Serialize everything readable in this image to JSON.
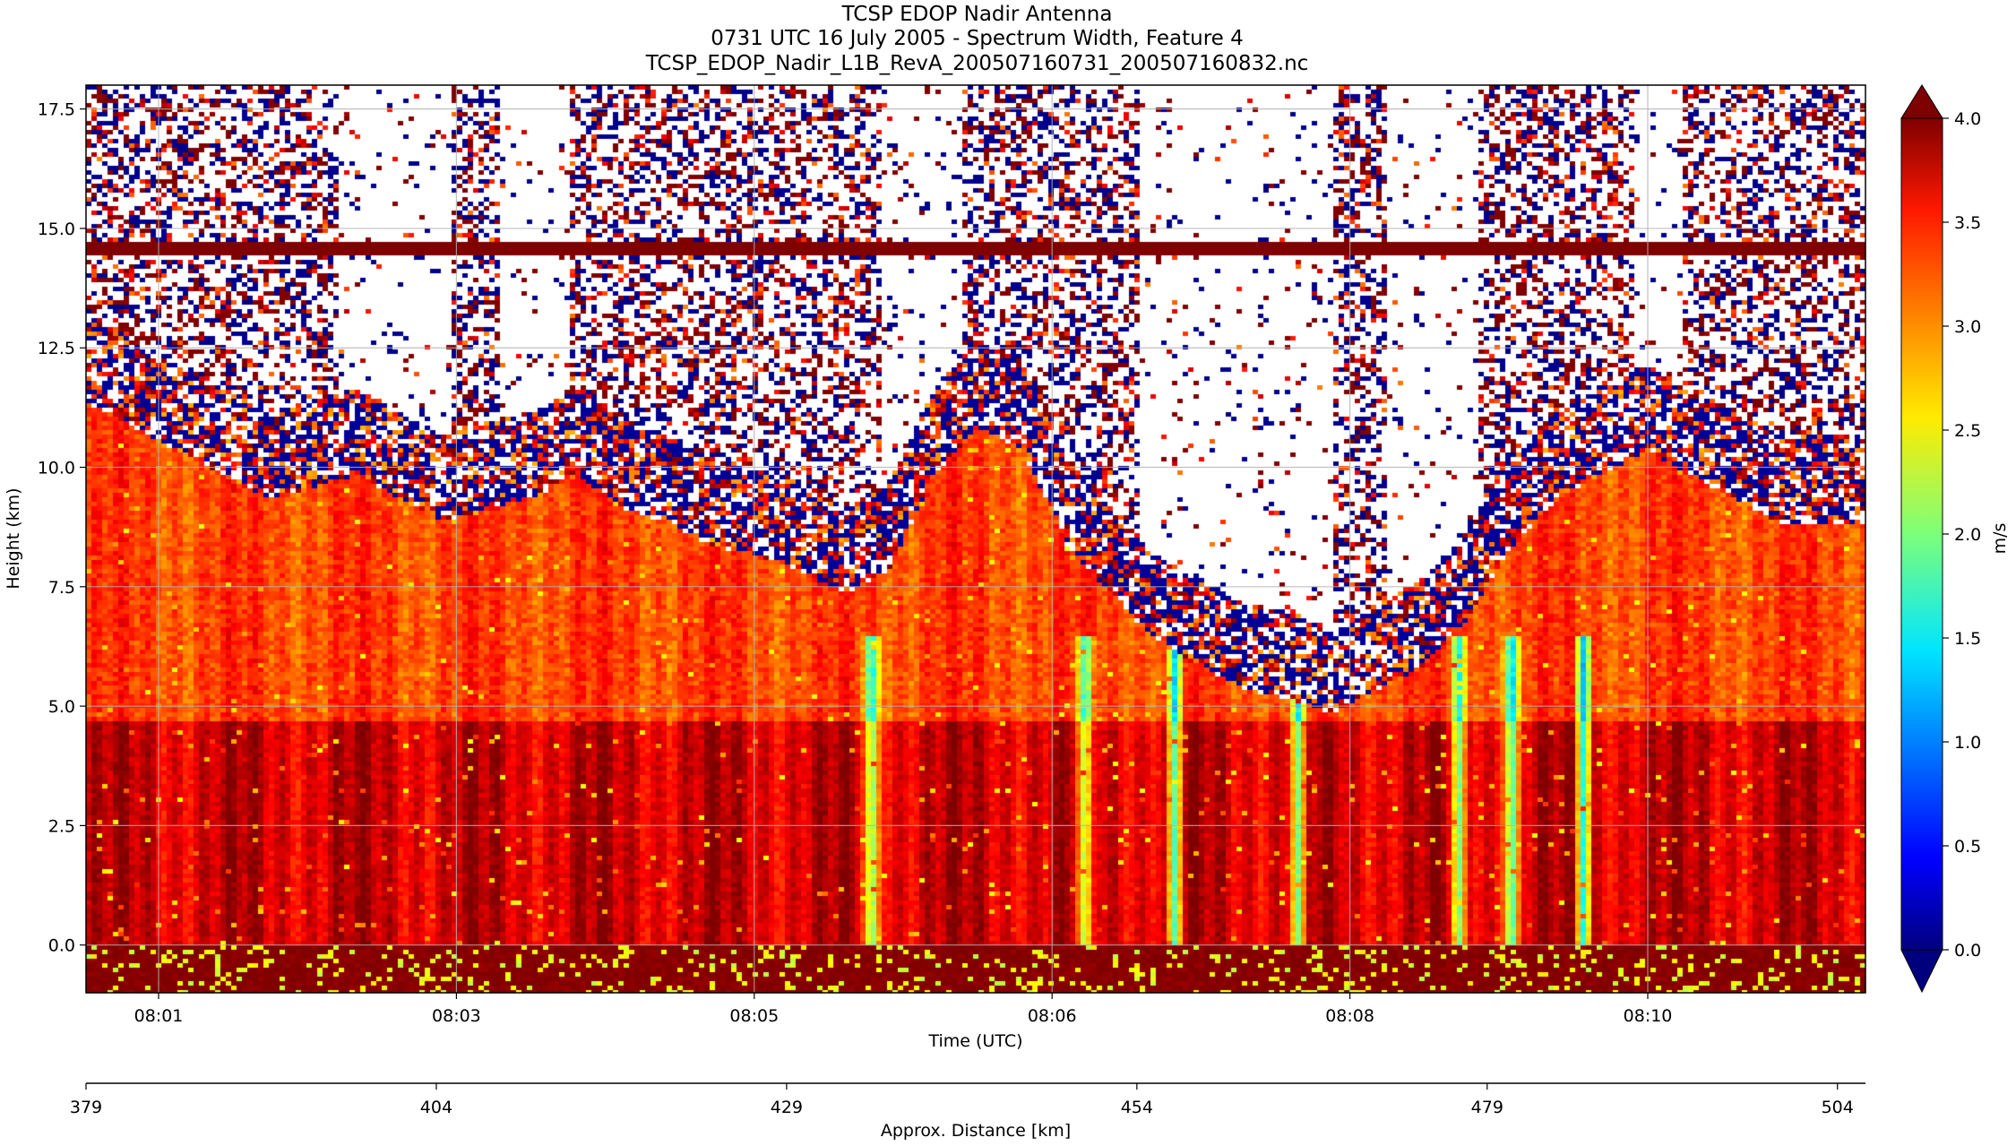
{
  "chart_data": {
    "type": "heatmap",
    "title_lines": [
      "TCSP EDOP Nadir Antenna",
      "0731 UTC 16 July 2005 - Spectrum Width, Feature 4",
      "TCSP_EDOP_Nadir_L1B_RevA_200507160731_200507160832.nc"
    ],
    "xlabel": "Time (UTC)",
    "ylabel": "Height (km)",
    "x_tick_labels": [
      "08:01",
      "08:03",
      "08:05",
      "08:06",
      "08:08",
      "08:10"
    ],
    "y_ticks": [
      0.0,
      2.5,
      5.0,
      7.5,
      10.0,
      12.5,
      15.0,
      17.5
    ],
    "y_tick_labels": [
      "0.0",
      "2.5",
      "5.0",
      "7.5",
      "10.0",
      "12.5",
      "15.0",
      "17.5"
    ],
    "ylim": [
      -1.0,
      18.0
    ],
    "grid": true,
    "secondary_axis": {
      "label": "Approx. Distance [km]",
      "xlim": [
        379,
        506
      ],
      "ticks": [
        379,
        404,
        429,
        454,
        479,
        504
      ],
      "tick_labels": [
        "379",
        "404",
        "429",
        "454",
        "479",
        "504"
      ]
    },
    "colorbar": {
      "label": "m/s",
      "colormap": "jet",
      "range": [
        0.0,
        4.0
      ],
      "ticks": [
        0.0,
        0.5,
        1.0,
        1.5,
        2.0,
        2.5,
        3.0,
        3.5,
        4.0
      ],
      "tick_labels": [
        "0.0",
        "0.5",
        "1.0",
        "1.5",
        "2.0",
        "2.5",
        "3.0",
        "3.5",
        "4.0"
      ],
      "extend": "both"
    },
    "features": {
      "surface_height_km": 0.0,
      "noise_line_height_km": 14.6,
      "high_width_layer_top_km": 4.7,
      "cloud_top_profile_km": [
        12.0,
        11.5,
        11.0,
        10.5,
        10.0,
        10.2,
        10.5,
        10.0,
        9.5,
        9.8,
        10.0,
        10.5,
        9.8,
        9.5,
        9.0,
        8.8,
        8.5,
        8.0,
        8.5,
        10.5,
        11.5,
        11.0,
        9.0,
        8.0,
        7.0,
        6.5,
        6.0,
        5.8,
        5.5,
        6.0,
        6.5,
        7.5,
        9.0,
        10.0,
        10.5,
        11.0,
        10.5,
        10.0,
        9.5,
        9.5,
        9.5
      ],
      "noise_gap_fractions": [
        0.14,
        0.205,
        0.23,
        0.27,
        0.445,
        0.49,
        0.59,
        0.7,
        0.73,
        0.78,
        0.87,
        0.895
      ],
      "low_width_streak_fractions": [
        0.44,
        0.56,
        0.61,
        0.68,
        0.77,
        0.8,
        0.84
      ]
    }
  }
}
